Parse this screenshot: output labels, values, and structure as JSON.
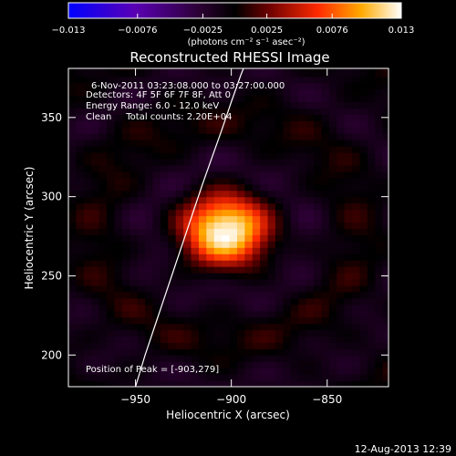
{
  "chart_data": {
    "type": "heatmap",
    "title": "Reconstructed RHESSI Image",
    "xlabel": "Heliocentric X (arcsec)",
    "ylabel": "Heliocentric Y (arcsec)",
    "xlim": [
      -985,
      -818
    ],
    "ylim": [
      180,
      381
    ],
    "xticks": [
      -950,
      -900,
      -850
    ],
    "xtick_labels": [
      "−950",
      "−900",
      "−850"
    ],
    "yticks": [
      200,
      250,
      300,
      350
    ],
    "ytick_labels": [
      "200",
      "250",
      "300",
      "350"
    ],
    "colorbar": {
      "ticks": [
        -0.013,
        -0.0076,
        -0.0025,
        0.0025,
        0.0076,
        0.013
      ],
      "tick_labels": [
        "−0.013",
        "−0.0076",
        "−0.0025",
        "0.0025",
        "0.0076",
        "0.013"
      ],
      "unit_text": "(photons cm⁻² s⁻¹ asec⁻²)",
      "range": [
        -0.013,
        0.013
      ],
      "colormap": "blue-purple-red-yellow-white"
    },
    "annotations": [
      "6-Nov-2011 03:23:08.000 to 03:27:00.000",
      "Detectors: 4F 5F 6F 7F 8F, Att 0",
      "Energy Range: 6.0 - 12.0 keV",
      "Clean     Total counts: 2.20E+04"
    ],
    "peak_label": "Position of Peak = [-903,279]",
    "source": {
      "peak_x": -903,
      "peak_y": 279,
      "peak_value": 0.013,
      "fwhm_arcsec": 32
    },
    "limb_curve": {
      "x": [
        -950,
        -945,
        -940,
        -935,
        -930,
        -925,
        -920,
        -915,
        -910,
        -905,
        -900,
        -895,
        -892
      ],
      "y": [
        180,
        200,
        218,
        236,
        254,
        272,
        290,
        308,
        325,
        342,
        360,
        377,
        386
      ]
    },
    "grid": false
  },
  "footer": {
    "timestamp": "12-Aug-2013 12:39"
  },
  "colors": {
    "background": "#000000",
    "foreground": "#ffffff",
    "colormap_stops": [
      "#0000ff",
      "#5a00b4",
      "#2a0030",
      "#000000",
      "#6a0000",
      "#ff2a00",
      "#ffaa00",
      "#ffffff"
    ]
  }
}
